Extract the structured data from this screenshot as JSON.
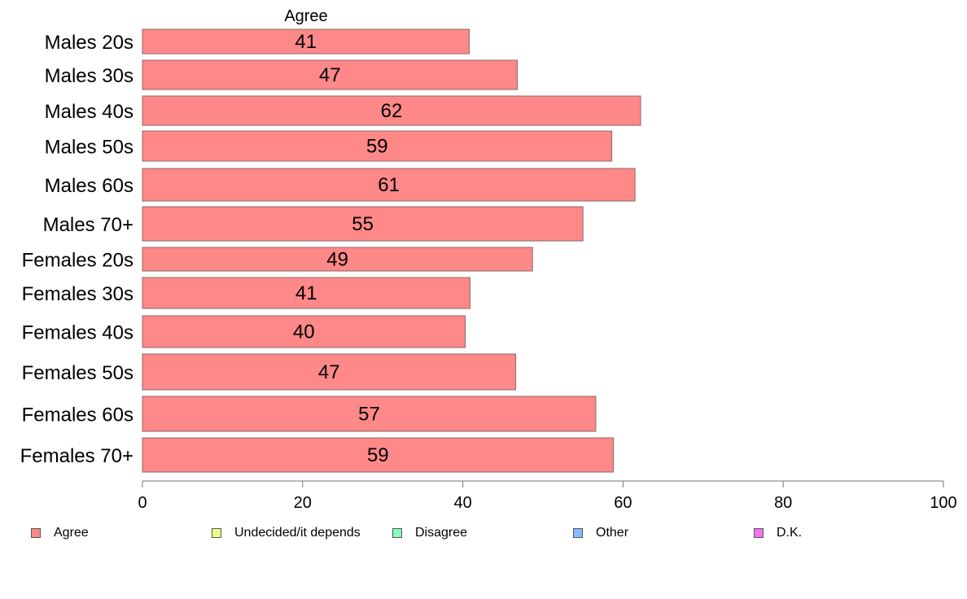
{
  "chart_data": {
    "type": "bar",
    "orientation": "horizontal",
    "top_label": "Agree",
    "categories": [
      "Males 20s",
      "Males 30s",
      "Males 40s",
      "Males 50s",
      "Males 60s",
      "Males 70+",
      "Females 20s",
      "Females 30s",
      "Females 40s",
      "Females 50s",
      "Females 60s",
      "Females 70+"
    ],
    "series": [
      {
        "name": "Agree",
        "color": "#ff8888",
        "values": [
          40.8,
          46.8,
          62.2,
          58.6,
          61.5,
          55.0,
          48.7,
          40.9,
          40.3,
          46.6,
          56.6,
          58.8
        ],
        "labels": [
          "41",
          "47",
          "62",
          "59",
          "61",
          "55",
          "49",
          "41",
          "40",
          "47",
          "57",
          "59"
        ]
      }
    ],
    "xlim": [
      0,
      100
    ],
    "xticks": [
      "0",
      "20",
      "40",
      "60",
      "80",
      "100"
    ],
    "grid": false,
    "legend_position": "bottom",
    "legend": [
      {
        "label": "Agree",
        "color": "#ff8888"
      },
      {
        "label": "Undecided/it depends",
        "color": "#eeff88"
      },
      {
        "label": "Disagree",
        "color": "#88ffbb"
      },
      {
        "label": "Other",
        "color": "#88bbff"
      },
      {
        "label": "D.K.",
        "color": "#ee77ee"
      }
    ]
  }
}
